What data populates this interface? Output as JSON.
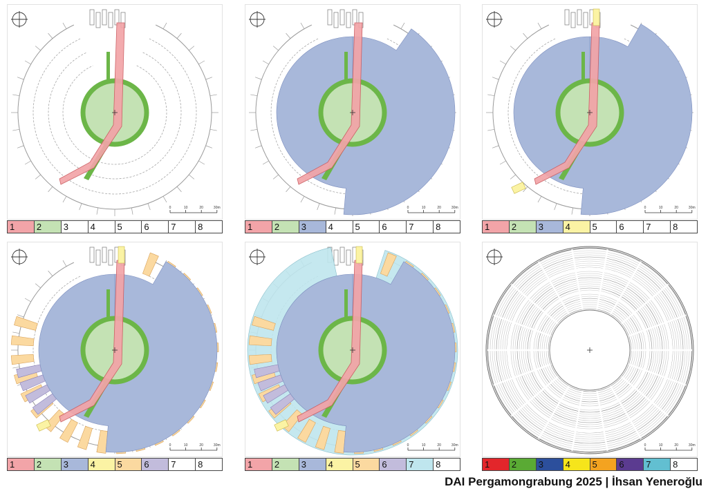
{
  "credit": "DAI Pergamongrabung 2025 | İhsan Yeneroğlu",
  "scale": {
    "ticks": [
      "0",
      "10",
      "20",
      "30m"
    ]
  },
  "colors": {
    "c1_light": "#f2a4a8",
    "c2_light": "#c4e2b4",
    "c3_light": "#a8b8da",
    "c4_light": "#fbf3a4",
    "c5_light": "#fbd9a0",
    "c6_light": "#c2bcdc",
    "c7_light": "#bfe6ee",
    "c1_strong": "#e3262b",
    "c2_strong": "#5aaa34",
    "c3_strong": "#2c4f9c",
    "c4_strong": "#f6e51b",
    "c5_strong": "#f4a320",
    "c6_strong": "#5b3b90",
    "c7_strong": "#62bfd1"
  },
  "panels": [
    {
      "id": "p1",
      "phases": [
        1,
        2
      ],
      "legend": [
        {
          "label": "1",
          "fill": "#f2a4a8"
        },
        {
          "label": "2",
          "fill": "#c4e2b4"
        },
        {
          "label": "3",
          "fill": "#ffffff"
        },
        {
          "label": "4",
          "fill": "#ffffff"
        },
        {
          "label": "5",
          "fill": "#ffffff"
        },
        {
          "label": "6",
          "fill": "#ffffff"
        },
        {
          "label": "7",
          "fill": "#ffffff"
        },
        {
          "label": "8",
          "fill": "#ffffff"
        }
      ]
    },
    {
      "id": "p2",
      "phases": [
        1,
        2,
        3
      ],
      "legend": [
        {
          "label": "1",
          "fill": "#f2a4a8"
        },
        {
          "label": "2",
          "fill": "#c4e2b4"
        },
        {
          "label": "3",
          "fill": "#a8b8da"
        },
        {
          "label": "4",
          "fill": "#ffffff"
        },
        {
          "label": "5",
          "fill": "#ffffff"
        },
        {
          "label": "6",
          "fill": "#ffffff"
        },
        {
          "label": "7",
          "fill": "#ffffff"
        },
        {
          "label": "8",
          "fill": "#ffffff"
        }
      ]
    },
    {
      "id": "p3",
      "phases": [
        1,
        2,
        3,
        4
      ],
      "legend": [
        {
          "label": "1",
          "fill": "#f2a4a8"
        },
        {
          "label": "2",
          "fill": "#c4e2b4"
        },
        {
          "label": "3",
          "fill": "#a8b8da"
        },
        {
          "label": "4",
          "fill": "#fbf3a4"
        },
        {
          "label": "5",
          "fill": "#ffffff"
        },
        {
          "label": "6",
          "fill": "#ffffff"
        },
        {
          "label": "7",
          "fill": "#ffffff"
        },
        {
          "label": "8",
          "fill": "#ffffff"
        }
      ]
    },
    {
      "id": "p4",
      "phases": [
        1,
        2,
        3,
        4,
        5,
        6
      ],
      "legend": [
        {
          "label": "1",
          "fill": "#f2a4a8"
        },
        {
          "label": "2",
          "fill": "#c4e2b4"
        },
        {
          "label": "3",
          "fill": "#a8b8da"
        },
        {
          "label": "4",
          "fill": "#fbf3a4"
        },
        {
          "label": "5",
          "fill": "#fbd9a0"
        },
        {
          "label": "6",
          "fill": "#c2bcdc"
        },
        {
          "label": "7",
          "fill": "#ffffff"
        },
        {
          "label": "8",
          "fill": "#ffffff"
        }
      ]
    },
    {
      "id": "p5",
      "phases": [
        1,
        2,
        3,
        4,
        5,
        6,
        7
      ],
      "legend": [
        {
          "label": "1",
          "fill": "#f2a4a8"
        },
        {
          "label": "2",
          "fill": "#c4e2b4"
        },
        {
          "label": "3",
          "fill": "#a8b8da"
        },
        {
          "label": "4",
          "fill": "#fbf3a4"
        },
        {
          "label": "5",
          "fill": "#fbd9a0"
        },
        {
          "label": "6",
          "fill": "#c2bcdc"
        },
        {
          "label": "7",
          "fill": "#bfe6ee"
        },
        {
          "label": "8",
          "fill": "#ffffff"
        }
      ]
    },
    {
      "id": "p6",
      "phases": [
        8
      ],
      "legend": [
        {
          "label": "1",
          "fill": "#e3262b"
        },
        {
          "label": "2",
          "fill": "#5aaa34"
        },
        {
          "label": "3",
          "fill": "#2c4f9c"
        },
        {
          "label": "4",
          "fill": "#f6e51b"
        },
        {
          "label": "5",
          "fill": "#f4a320"
        },
        {
          "label": "6",
          "fill": "#5b3b90"
        },
        {
          "label": "7",
          "fill": "#62bfd1"
        },
        {
          "label": "8",
          "fill": "#ffffff"
        }
      ]
    }
  ]
}
